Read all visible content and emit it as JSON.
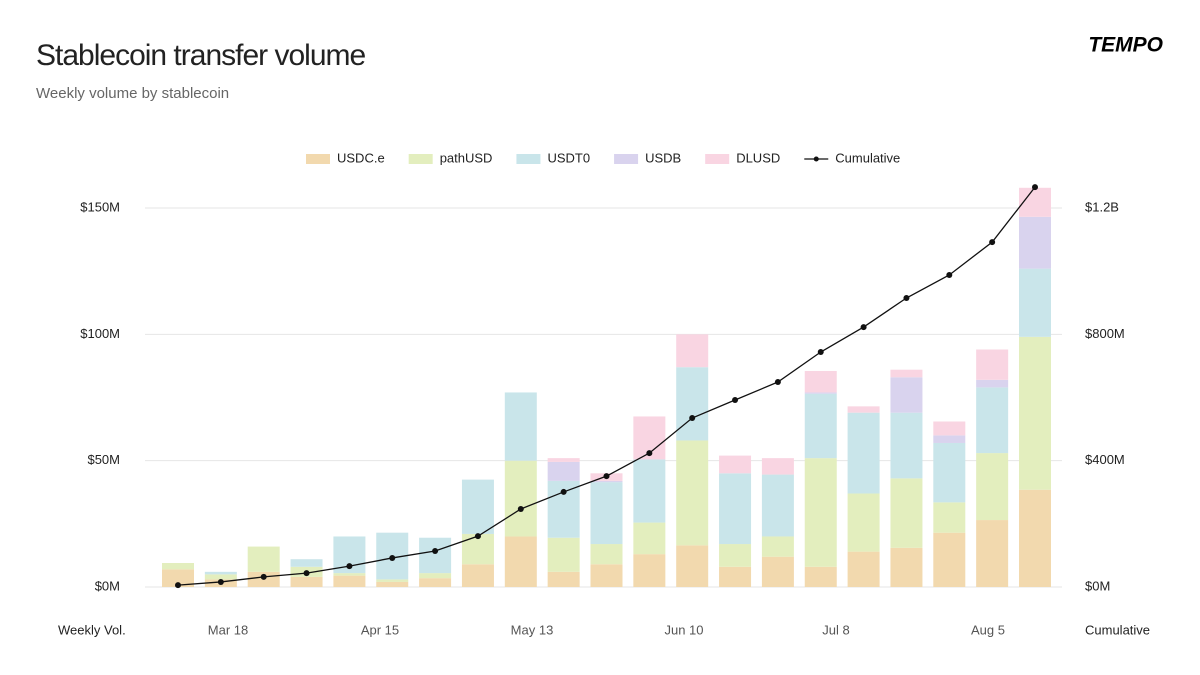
{
  "chart_data": {
    "type": "stacked_bar",
    "title": "Stablecoin transfer volume",
    "subtitle": "Weekly volume by stablecoin",
    "brand": "TEMPO",
    "y_label": "Weekly Vol.",
    "y2_label": "Cumulative",
    "xtick_labels": [
      "Mar 18",
      "Apr 15",
      "May 13",
      "Jun 10",
      "Jul 8",
      "Aug 5"
    ],
    "ylim": [
      0,
      150
    ],
    "yticks": [
      {
        "value": 0,
        "label": "$0M"
      },
      {
        "value": 50,
        "label": "$50M"
      },
      {
        "value": 100,
        "label": "$100M"
      },
      {
        "value": 150,
        "label": "$150M"
      }
    ],
    "y2lim": [
      0,
      1200
    ],
    "y2ticks": [
      {
        "value": 0,
        "label": "$0M"
      },
      {
        "value": 400,
        "label": "$400M"
      },
      {
        "value": 800,
        "label": "$800M"
      },
      {
        "value": 1200,
        "label": "$1.2B"
      }
    ],
    "grid": true,
    "legend": "top",
    "series": [
      {
        "name": "USDC.e",
        "color": "#f2d9ae",
        "values": [
          7,
          3,
          6,
          4,
          4.5,
          2,
          3.5,
          9,
          20,
          6,
          9,
          13,
          16.5,
          8,
          12,
          8,
          14,
          15.5,
          21.5,
          26.5,
          38.5
        ]
      },
      {
        "name": "pathUSD",
        "color": "#e3eebe",
        "values": [
          2.5,
          2,
          10,
          4,
          1,
          1,
          2,
          12,
          30,
          13.5,
          8,
          12.5,
          41.5,
          9,
          8,
          43,
          23,
          27.5,
          12,
          26.5,
          60.5
        ]
      },
      {
        "name": "USDT0",
        "color": "#c9e5ea",
        "values": [
          0,
          1,
          0,
          3,
          14.5,
          18.5,
          14,
          21.5,
          27,
          22.5,
          24.5,
          25,
          29,
          28,
          24.5,
          25.5,
          32,
          26,
          23.5,
          26,
          27
        ]
      },
      {
        "name": "USDB",
        "color": "#d9d3ee",
        "values": [
          0,
          0,
          0,
          0,
          0,
          0,
          0,
          0,
          0,
          7.5,
          0.5,
          0,
          0,
          0,
          0,
          0.5,
          0,
          14,
          3,
          3,
          20.5
        ]
      },
      {
        "name": "DLUSD",
        "color": "#f9d5e2",
        "values": [
          0,
          0,
          0,
          0,
          0,
          0,
          0,
          0,
          0,
          1.5,
          3,
          17,
          13,
          7,
          6.5,
          8.5,
          2.5,
          3,
          5.5,
          12,
          11.5
        ]
      },
      {
        "name": "Cumulative",
        "color": "#111111",
        "axis": "y2",
        "type": "line",
        "values": [
          6,
          16,
          32,
          44,
          66,
          92,
          114,
          161,
          247,
          301,
          351,
          424,
          535,
          592,
          649,
          744,
          823,
          915,
          988,
          1092,
          1266
        ]
      }
    ]
  }
}
